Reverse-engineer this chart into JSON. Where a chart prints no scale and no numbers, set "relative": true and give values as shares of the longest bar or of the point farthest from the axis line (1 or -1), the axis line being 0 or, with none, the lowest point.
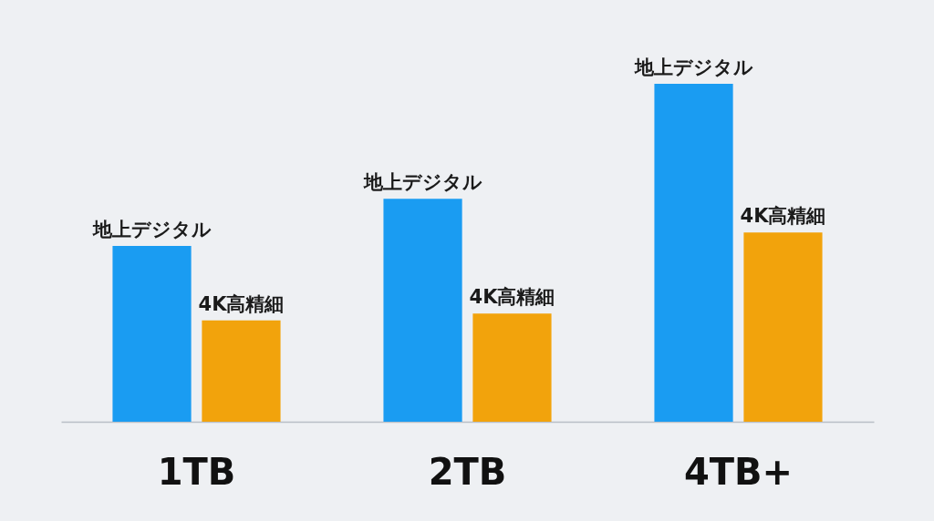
{
  "chart_data": {
    "type": "bar",
    "relative": true,
    "legend": false,
    "categories": [
      "1TB",
      "2TB",
      "4TB+"
    ],
    "series": [
      {
        "name": "地上デジタル",
        "color": "#1a9cf2",
        "values": [
          0.52,
          0.66,
          1
        ]
      },
      {
        "name": "4K高精細",
        "color": "#f2a30c",
        "values": [
          0.3,
          0.32,
          0.56
        ]
      }
    ]
  }
}
